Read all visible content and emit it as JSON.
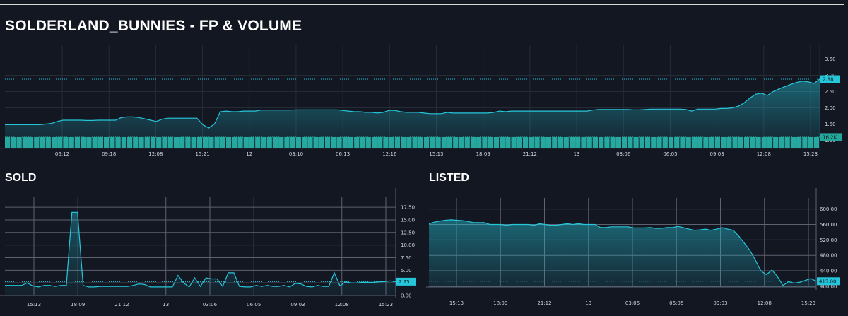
{
  "page": {
    "title": "SOLDERLAND_BUNNIES - FP & VOLUME",
    "colors": {
      "background": "#131722",
      "series": "#26c6da",
      "volume": "#26a69a",
      "grid": "#2a2e39",
      "grid_light": "#7a7d86"
    }
  },
  "chart_data": [
    {
      "id": "fp_volume",
      "type": "area",
      "title": "SOLDERLAND_BUNNIES - FP & VOLUME",
      "x_tick_labels": [
        "06:12",
        "09:18",
        "12:08",
        "15:21",
        "12",
        "03:10",
        "06:13",
        "12:16",
        "15:13",
        "18:09",
        "21:12",
        "13",
        "03:06",
        "06:05",
        "09:03",
        "12:08",
        "15:23"
      ],
      "y_tick_labels": [
        "3.50",
        "3.00",
        "2.50",
        "2.00",
        "1.50",
        "1.00"
      ],
      "ylim": [
        0.75,
        3.75
      ],
      "grid": true,
      "last_price_label": "2.88",
      "volume_label": "16.2K",
      "fp": [
        1.48,
        1.48,
        1.48,
        1.48,
        1.48,
        1.48,
        1.48,
        1.5,
        1.52,
        1.58,
        1.62,
        1.62,
        1.62,
        1.62,
        1.61,
        1.61,
        1.62,
        1.62,
        1.62,
        1.62,
        1.7,
        1.72,
        1.72,
        1.7,
        1.66,
        1.62,
        1.58,
        1.65,
        1.68,
        1.68,
        1.68,
        1.68,
        1.68,
        1.68,
        1.48,
        1.38,
        1.5,
        1.88,
        1.9,
        1.88,
        1.88,
        1.9,
        1.9,
        1.9,
        1.93,
        1.93,
        1.93,
        1.93,
        1.93,
        1.93,
        1.94,
        1.94,
        1.94,
        1.94,
        1.94,
        1.94,
        1.94,
        1.94,
        1.92,
        1.9,
        1.88,
        1.88,
        1.86,
        1.86,
        1.84,
        1.86,
        1.92,
        1.92,
        1.88,
        1.86,
        1.86,
        1.86,
        1.84,
        1.82,
        1.82,
        1.82,
        1.86,
        1.84,
        1.84,
        1.84,
        1.84,
        1.84,
        1.84,
        1.84,
        1.86,
        1.9,
        1.88,
        1.9,
        1.9,
        1.9,
        1.9,
        1.9,
        1.9,
        1.9,
        1.9,
        1.9,
        1.9,
        1.9,
        1.9,
        1.9,
        1.9,
        1.93,
        1.95,
        1.95,
        1.95,
        1.95,
        1.95,
        1.95,
        1.94,
        1.94,
        1.95,
        1.96,
        1.96,
        1.96,
        1.96,
        1.96,
        1.96,
        1.95,
        1.9,
        1.96,
        1.96,
        1.96,
        1.96,
        1.98,
        1.98,
        2.0,
        2.05,
        2.15,
        2.3,
        2.42,
        2.45,
        2.38,
        2.5,
        2.58,
        2.65,
        2.72,
        2.78,
        2.82,
        2.8,
        2.75,
        2.88
      ],
      "volume": [
        16.2
      ]
    },
    {
      "id": "sold",
      "type": "area",
      "title": "SOLD",
      "x_tick_labels": [
        "15:13",
        "18:09",
        "21:12",
        "13",
        "03:06",
        "06:05",
        "09:03",
        "12:08",
        "15:23"
      ],
      "y_tick_labels": [
        "17.50",
        "15.00",
        "12.50",
        "10.00",
        "7.50",
        "5.00",
        "2.50",
        "0.00"
      ],
      "ylim": [
        0,
        18.5
      ],
      "grid": true,
      "last_value_label": "2.75",
      "values": [
        2,
        2,
        2,
        2,
        2.5,
        1.9,
        1.7,
        2,
        2,
        1.8,
        2,
        2,
        16.5,
        16.5,
        2,
        1.7,
        1.7,
        1.8,
        1.8,
        1.8,
        1.8,
        1.8,
        1.8,
        2,
        2.3,
        2.2,
        1.7,
        1.7,
        1.7,
        1.7,
        1.7,
        4,
        2.5,
        1.7,
        3.5,
        1.8,
        3.5,
        3.3,
        3.3,
        1.8,
        4.5,
        4.5,
        1.8,
        1.7,
        1.7,
        2,
        1.8,
        2,
        1.8,
        1.8,
        2,
        1.7,
        2.4,
        2.3,
        1.8,
        1.7,
        2,
        1.8,
        1.8,
        4.5,
        1.9,
        2.7,
        2.5,
        2.5,
        2.6,
        2.6,
        2.6,
        2.7,
        2.75,
        2.9,
        2.75
      ]
    },
    {
      "id": "listed",
      "type": "area",
      "title": "LISTED",
      "x_tick_labels": [
        "15:13",
        "18:09",
        "21:12",
        "13",
        "03:06",
        "06:05",
        "09:03",
        "12:08",
        "15:23"
      ],
      "y_tick_labels": [
        "600.00",
        "560.00",
        "520.00",
        "480.00",
        "440.00",
        "400.00"
      ],
      "ylim": [
        398,
        614
      ],
      "grid": true,
      "last_value_label": "413.00",
      "values": [
        562,
        566,
        569,
        571,
        572,
        571,
        570,
        568,
        565,
        565,
        565,
        560,
        560,
        560,
        558,
        560,
        560,
        560,
        560,
        558,
        562,
        560,
        558,
        558,
        560,
        562,
        560,
        562,
        560,
        560,
        560,
        552,
        552,
        554,
        554,
        554,
        554,
        551,
        551,
        551,
        552,
        550,
        550,
        552,
        552,
        555,
        552,
        548,
        545,
        546,
        548,
        545,
        548,
        552,
        548,
        545,
        530,
        512,
        493,
        468,
        440,
        430,
        442,
        425,
        402,
        412,
        408,
        410,
        415,
        420,
        413
      ]
    }
  ]
}
